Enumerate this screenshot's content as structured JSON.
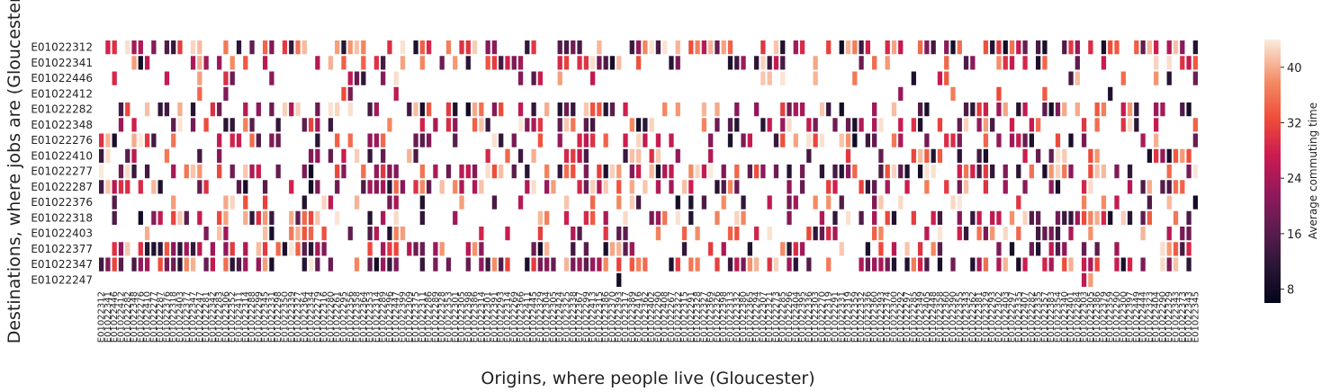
{
  "chart_data": {
    "type": "heatmap",
    "title": "",
    "xlabel": "Origins, where people live (Gloucester)",
    "ylabel": "Destinations, where jobs are (Gloucester)",
    "rows": [
      "E01022312",
      "E01022341",
      "E01022446",
      "E01022412",
      "E01022282",
      "E01022348",
      "E01022276",
      "E01022410",
      "E01022277",
      "E01022287",
      "E01022376",
      "E01022318",
      "E01022403",
      "E01022377",
      "E01022347",
      "E01022247"
    ],
    "columns": [
      "E01022312",
      "E01022341",
      "E01022446",
      "E01022412",
      "E01022282",
      "E01022348",
      "E01022276",
      "E01022410",
      "E01022277",
      "E01022287",
      "E01022376",
      "E01022318",
      "E01022403",
      "E01022377",
      "E01022347",
      "E01022247",
      "E01022281",
      "E01022342",
      "E01022283",
      "E01022306",
      "E01022352",
      "E01022411",
      "E01022314",
      "E01022288",
      "E01022299",
      "E01022345",
      "E01022331",
      "E01022298",
      "E01022350",
      "E01022339",
      "E01022327",
      "E01022364",
      "E01022334",
      "E01022279",
      "E01022316",
      "E01022280",
      "E01022261",
      "E01022295",
      "E01022356",
      "E01022358",
      "E01022364",
      "E01022353",
      "E01022314",
      "E01022289",
      "E01022396",
      "E01022447",
      "E01022399",
      "E01022309",
      "E01022375",
      "E01022311",
      "E01022286",
      "E01022289",
      "E01022328",
      "E01022353",
      "E01022301",
      "E01022305",
      "E01022398",
      "E01022386",
      "E01022314",
      "E01022301",
      "E01022391",
      "E01022293",
      "E01022314",
      "E01022269",
      "E01022366",
      "E01022411",
      "E01022445",
      "E01022329",
      "E01022304",
      "E01022305",
      "E01022424",
      "E01022325",
      "E01022338",
      "E01022367",
      "E01022299",
      "E01022413",
      "E01022315",
      "E01022386",
      "E01022370",
      "E01022393",
      "E01022317",
      "E01022389",
      "E01022416",
      "E01022362",
      "E01022402",
      "E01022290",
      "E01022408",
      "E01022267",
      "E01022322",
      "E01022315",
      "E01022291",
      "E01022328",
      "E01022327",
      "E01022369",
      "E01022326",
      "E01022398",
      "E01022313",
      "E01022332",
      "E01022380",
      "E01022365",
      "E01022294",
      "E01022307",
      "E01022321",
      "E01022273",
      "E01022285",
      "E01022296",
      "E01022404",
      "E01022395",
      "E01022336",
      "E01022303",
      "E01022270",
      "E01022319",
      "E01022291",
      "E01022331",
      "E01022319",
      "E01022359",
      "E01022332",
      "E01022336",
      "E01022360",
      "E01022393",
      "E01022374",
      "E01022300",
      "E01022292",
      "E01022297",
      "E01022285",
      "E01022349",
      "E01022405",
      "E01022448",
      "E01022358",
      "E01022360",
      "E01022390",
      "E01022355",
      "E01022343",
      "E01022362",
      "E01022381",
      "E01022329",
      "E01022293",
      "E01022302",
      "E01022403",
      "E01022297",
      "E01022335",
      "E01022407",
      "E01022282",
      "E01022335",
      "E01022357",
      "E01022383",
      "E01022354",
      "E01022340",
      "E01022401",
      "E01022284",
      "E01022303",
      "E01022305",
      "E01022386",
      "E01022379",
      "E01022359",
      "E01022290",
      "E01022300",
      "E01022397",
      "E01022449",
      "E01022444",
      "E01022323",
      "E01022404",
      "E01022290",
      "E01022329",
      "E01022343",
      "E01022373",
      "E01022343",
      "E01022345"
    ],
    "colorbar": {
      "label": "Average commuting time",
      "min": 6,
      "max": 44,
      "ticks": [
        8,
        16,
        24,
        32,
        40
      ]
    },
    "missing_value_color": "#ffffff",
    "density_row_probability": [
      0.55,
      0.32,
      0.22,
      0.08,
      0.48,
      0.46,
      0.42,
      0.3,
      0.52,
      0.5,
      0.18,
      0.38,
      0.34,
      0.42,
      0.62,
      0.02
    ]
  }
}
